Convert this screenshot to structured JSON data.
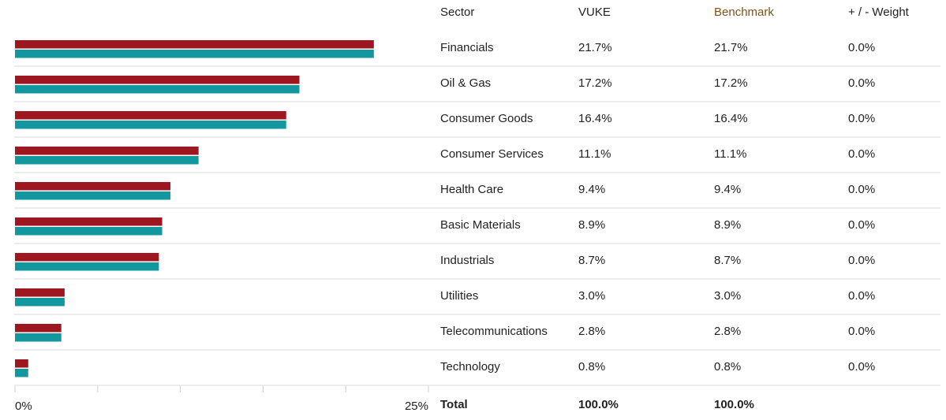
{
  "chart_data": {
    "type": "hbar",
    "category_label": "Sector",
    "categories": [
      "Financials",
      "Oil & Gas",
      "Consumer Goods",
      "Consumer Services",
      "Health Care",
      "Basic Materials",
      "Industrials",
      "Utilities",
      "Telecommunications",
      "Technology"
    ],
    "series": [
      {
        "name": "VUKE",
        "color": "#9d1620",
        "header_color": "#222222",
        "values": [
          21.7,
          17.2,
          16.4,
          11.1,
          9.4,
          8.9,
          8.7,
          3.0,
          2.8,
          0.8
        ],
        "value_labels": [
          "21.7%",
          "17.2%",
          "16.4%",
          "11.1%",
          "9.4%",
          "8.9%",
          "8.7%",
          "3.0%",
          "2.8%",
          "0.8%"
        ],
        "total_label": "100.0%"
      },
      {
        "name": "Benchmark",
        "color": "#11979d",
        "header_color": "#7f5217",
        "values": [
          21.7,
          17.2,
          16.4,
          11.1,
          9.4,
          8.9,
          8.7,
          3.0,
          2.8,
          0.8
        ],
        "value_labels": [
          "21.7%",
          "17.2%",
          "16.4%",
          "11.1%",
          "9.4%",
          "8.9%",
          "8.7%",
          "3.0%",
          "2.8%",
          "0.8%"
        ],
        "total_label": "100.0%"
      }
    ],
    "difference_label": "+ / - Weight",
    "differences": [
      "0.0%",
      "0.0%",
      "0.0%",
      "0.0%",
      "0.0%",
      "0.0%",
      "0.0%",
      "0.0%",
      "0.0%",
      "0.0%"
    ],
    "total_name": "Total",
    "xlim": [
      0,
      25
    ],
    "xticks": [
      {
        "value": 0,
        "label": "0%"
      },
      {
        "value": 25,
        "label": "25%"
      }
    ],
    "minor_xticks": [
      5,
      10,
      15,
      20
    ]
  }
}
